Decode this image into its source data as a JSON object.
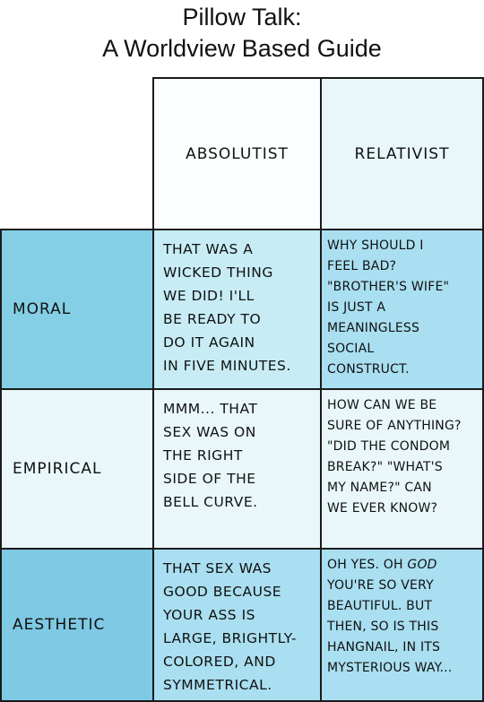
{
  "title": {
    "line1": "Pillow Talk:",
    "line2": "A Worldview Based Guide"
  },
  "columns": {
    "absolutist": "ABSOLUTIST",
    "relativist": "RELATIVIST"
  },
  "rows": [
    {
      "label": "MORAL",
      "absolutist": [
        "THAT WAS A",
        "WICKED THING",
        "WE DID! I'LL",
        "BE READY TO",
        "DO IT AGAIN",
        "IN FIVE MINUTES."
      ],
      "relativist": [
        "WHY SHOULD I",
        "FEEL BAD?",
        "\"BROTHER'S WIFE\"",
        "IS JUST A",
        "MEANINGLESS",
        "SOCIAL",
        "CONSTRUCT."
      ]
    },
    {
      "label": "EMPIRICAL",
      "absolutist": [
        "MMM... THAT",
        "SEX WAS ON",
        "THE RIGHT",
        "SIDE OF THE",
        "BELL CURVE."
      ],
      "relativist": [
        "HOW CAN WE BE",
        "SURE OF ANYTHING?",
        "\"DID THE CONDOM",
        "BREAK?\" \"WHAT'S",
        "MY NAME?\" CAN",
        "WE EVER KNOW?"
      ]
    },
    {
      "label": "AESTHETIC",
      "absolutist": [
        "THAT SEX WAS",
        "GOOD BECAUSE",
        "YOUR ASS IS",
        "LARGE, BRIGHTLY-",
        "COLORED, AND",
        "SYMMETRICAL."
      ],
      "relativist_pre": "OH YES. OH",
      "relativist_emph": "GOD",
      "relativist": [
        "YOU'RE SO VERY",
        "BEAUTIFUL. BUT",
        "THEN, SO IS THIS",
        "HANGNAIL, IN ITS",
        "MYSTERIOUS WAY..."
      ]
    }
  ],
  "colors": {
    "header_bg": "#fbfeff",
    "moral_label": "#84cfe6",
    "moral_abs": "#c7ecf6",
    "moral_rel": "#a9dff0",
    "empirical": "#e9f7fb",
    "aesthetic_label": "#7ec9e3",
    "aesthetic_cells": "#a9dff0"
  }
}
